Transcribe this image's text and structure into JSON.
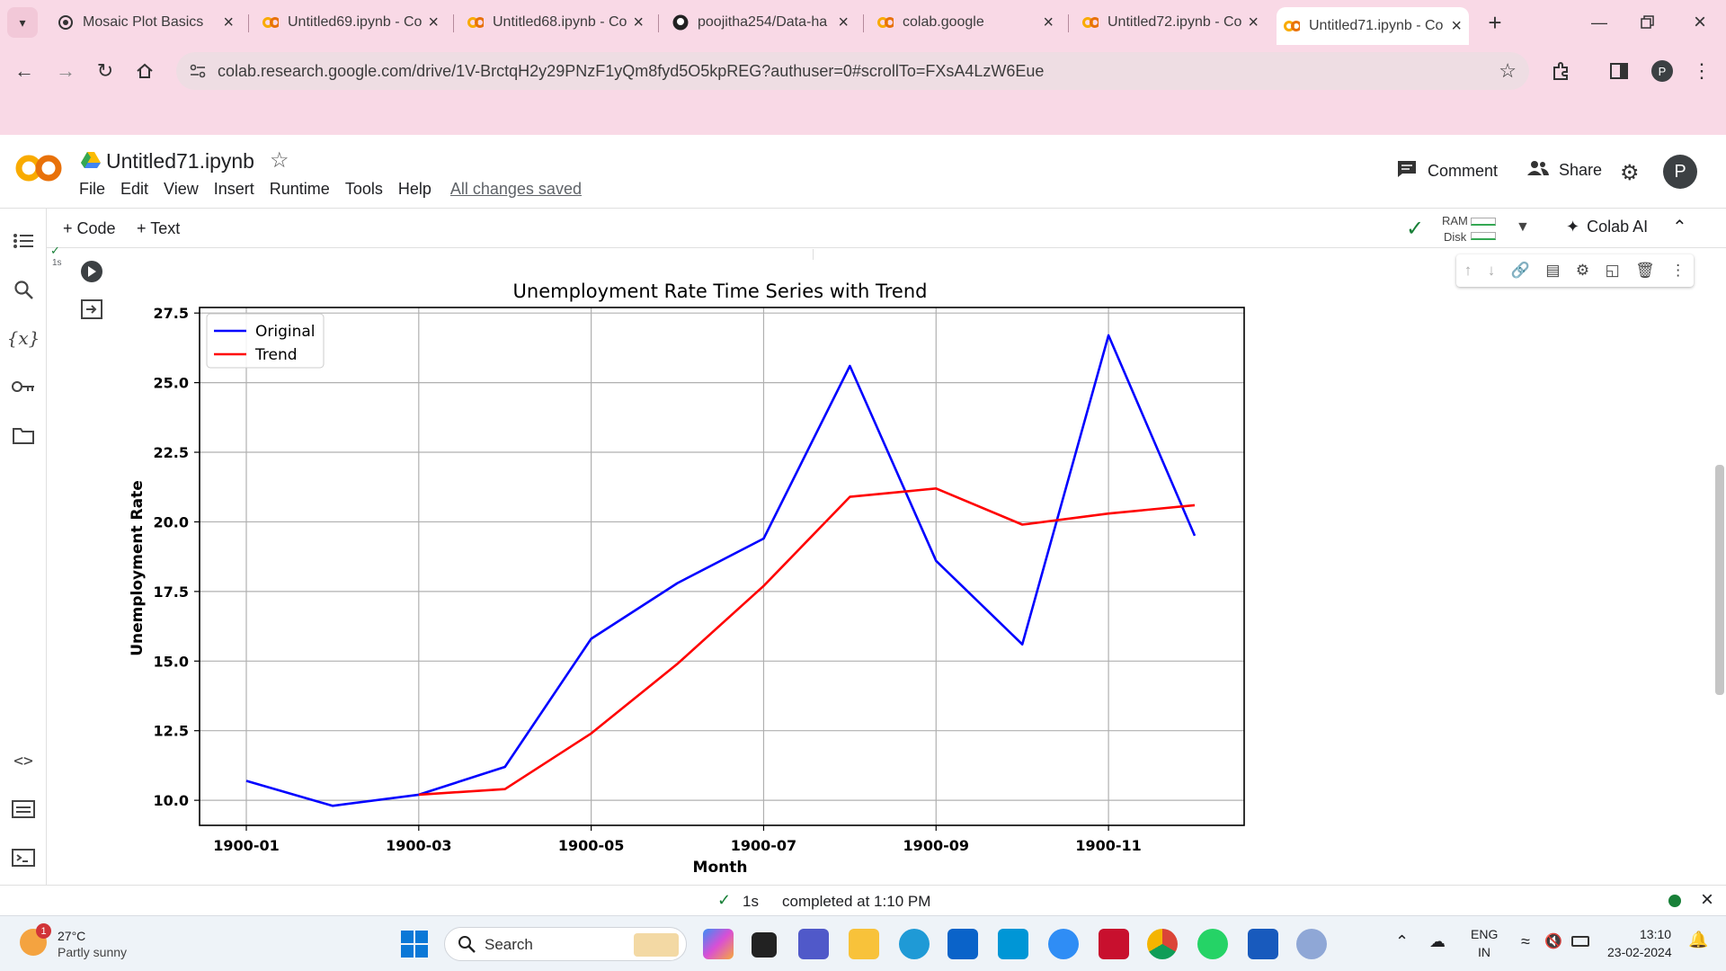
{
  "browser": {
    "tabs": [
      {
        "label": "Mosaic Plot Basics",
        "icon": "chatgpt-icon"
      },
      {
        "label": "Untitled69.ipynb - Co",
        "icon": "colab-icon"
      },
      {
        "label": "Untitled68.ipynb - Co",
        "icon": "colab-icon"
      },
      {
        "label": "poojitha254/Data-ha",
        "icon": "github-icon"
      },
      {
        "label": "colab.google",
        "icon": "colab-icon"
      },
      {
        "label": "Untitled72.ipynb - Co",
        "icon": "colab-icon"
      },
      {
        "label": "Untitled71.ipynb - Co",
        "icon": "colab-icon"
      }
    ],
    "url": "colab.research.google.com/drive/1V-BrctqH2y29PNzF1yQm8fyd5O5kpREG?authuser=0#scrollTo=FXsA4LzW6Eue",
    "profile_initial": "P",
    "accent": "#f9d9e6"
  },
  "colab": {
    "notebook_title": "Untitled71.ipynb",
    "menu": [
      "File",
      "Edit",
      "View",
      "Insert",
      "Runtime",
      "Tools",
      "Help"
    ],
    "save_status": "All changes saved",
    "comment_label": "Comment",
    "share_label": "Share",
    "avatar_initial": "P",
    "add_code_label": "+ Code",
    "add_text_label": "+ Text",
    "ram_label": "RAM",
    "disk_label": "Disk",
    "colab_ai_label": "Colab AI",
    "exec_time": "1s"
  },
  "chart_data": {
    "type": "line",
    "title": "Unemployment Rate Time Series with Trend",
    "xlabel": "Month",
    "ylabel": "Unemployment Rate",
    "x": [
      "1900-01",
      "1900-02",
      "1900-03",
      "1900-04",
      "1900-05",
      "1900-06",
      "1900-07",
      "1900-08",
      "1900-09",
      "1900-10",
      "1900-11",
      "1900-12"
    ],
    "xticks": [
      "1900-01",
      "1900-03",
      "1900-05",
      "1900-07",
      "1900-09",
      "1900-11"
    ],
    "yticks": [
      "10.0",
      "12.5",
      "15.0",
      "17.5",
      "20.0",
      "22.5",
      "25.0",
      "27.5"
    ],
    "ylim": [
      9.1,
      27.7
    ],
    "grid": true,
    "legend": "upper-left",
    "series": [
      {
        "name": "Original",
        "color": "#0000ff",
        "values": [
          10.7,
          9.8,
          10.2,
          11.2,
          15.8,
          17.8,
          19.4,
          25.6,
          18.6,
          15.6,
          26.7,
          19.5
        ]
      },
      {
        "name": "Trend",
        "color": "#ff0000",
        "values": [
          null,
          null,
          10.2,
          10.4,
          12.4,
          14.9,
          17.7,
          20.9,
          21.2,
          19.9,
          20.3,
          20.6
        ]
      }
    ]
  },
  "status": {
    "time": "1s",
    "message": "completed at 1:10 PM"
  },
  "taskbar": {
    "temperature": "27°C",
    "weather": "Partly sunny",
    "weather_badge": "1",
    "search_placeholder": "Search",
    "language": "ENG",
    "region": "IN",
    "clock_time": "13:10",
    "clock_date": "23-02-2024"
  }
}
